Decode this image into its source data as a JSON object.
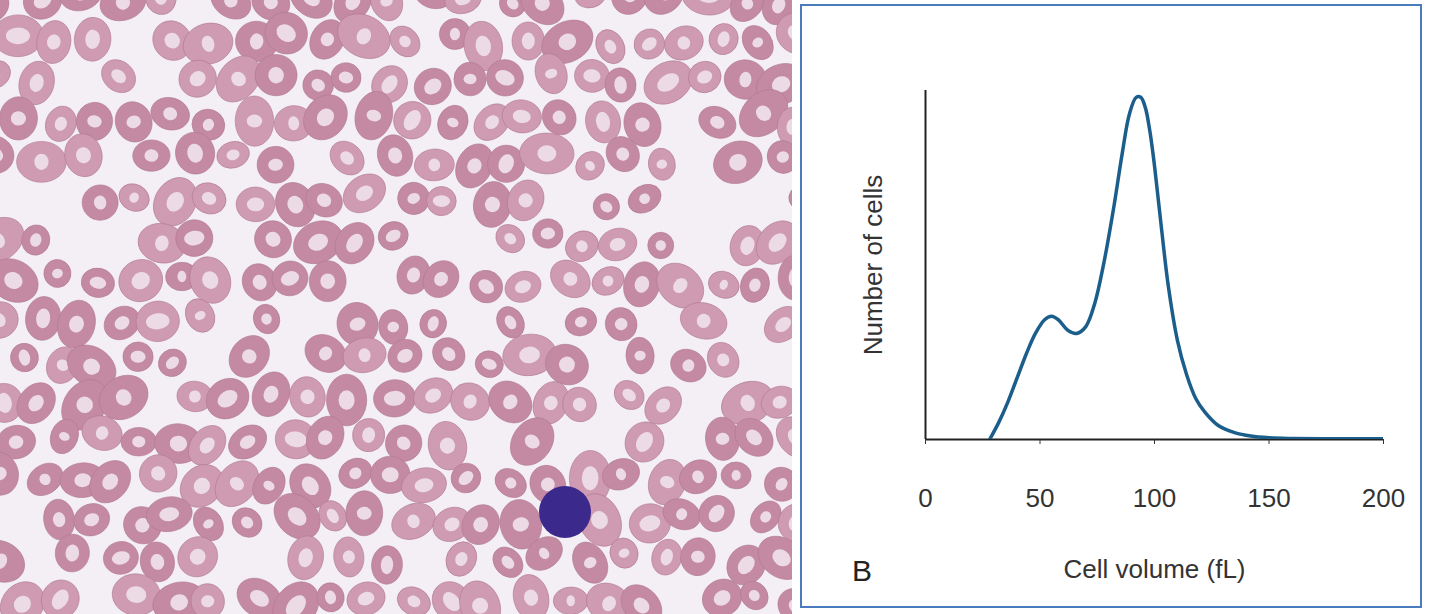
{
  "chart_data": {
    "type": "line",
    "annotation": "B",
    "xlabel": "Cell volume (fL)",
    "ylabel": "Number of cells",
    "x": [
      28,
      32,
      36,
      40,
      44,
      48,
      52,
      55,
      58,
      62,
      66,
      70,
      74,
      78,
      82,
      86,
      89,
      92,
      94,
      96,
      98,
      100,
      103,
      106,
      110,
      114,
      118,
      122,
      128,
      135,
      142,
      150,
      160,
      180,
      200
    ],
    "values": [
      0,
      0.05,
      0.11,
      0.18,
      0.25,
      0.31,
      0.35,
      0.36,
      0.35,
      0.32,
      0.31,
      0.33,
      0.4,
      0.52,
      0.67,
      0.84,
      0.95,
      1.0,
      1.0,
      0.97,
      0.9,
      0.8,
      0.62,
      0.45,
      0.29,
      0.19,
      0.12,
      0.08,
      0.04,
      0.02,
      0.01,
      0.005,
      0.003,
      0.002,
      0.002
    ],
    "color": "#1b5e8c",
    "xlim": [
      0,
      200
    ],
    "xticks": [
      0,
      50,
      100,
      150,
      200
    ],
    "ylim": [
      0,
      1.02
    ],
    "yticks": [],
    "tick_labels": "x",
    "grid": false
  }
}
